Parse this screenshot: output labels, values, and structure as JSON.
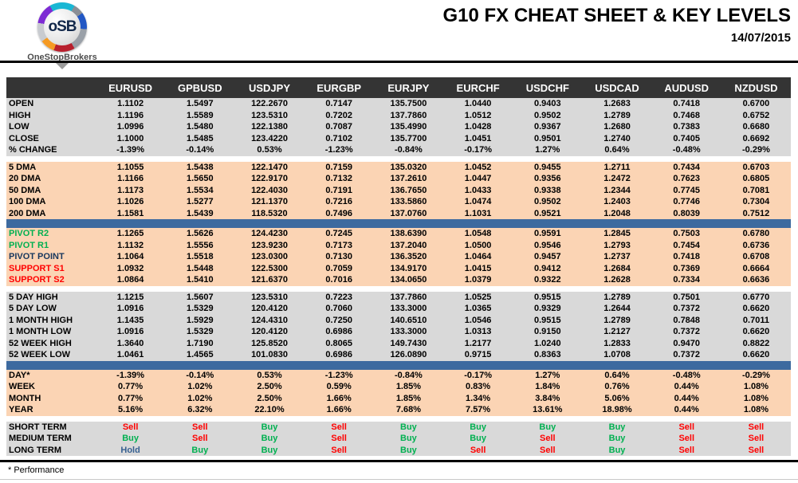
{
  "header": {
    "logo_text": "oSB",
    "logo_subtext": "OneStopBrokers",
    "title": "G10 FX CHEAT SHEET & KEY LEVELS",
    "date": "14/07/2015"
  },
  "colors": {
    "header_bg": "#343434",
    "section_gray": "#D9D9D9",
    "section_peach": "#FBD4B4",
    "divider_blue": "#3D6A9F",
    "buy_green": "#00B050",
    "sell_red": "#FF0000",
    "hold_blue": "#376091",
    "pivot_navy": "#17375D"
  },
  "table": {
    "columns": [
      "EURUSD",
      "GPBUSD",
      "USDJPY",
      "EURGBP",
      "EURJPY",
      "EURCHF",
      "USDCHF",
      "USDCAD",
      "AUDUSD",
      "NZDUSD"
    ],
    "sections": [
      {
        "id": "ohlc",
        "bg": "gray",
        "divider_after": "gap",
        "rows": [
          {
            "label": "OPEN",
            "values": [
              "1.1102",
              "1.5497",
              "122.2670",
              "0.7147",
              "135.7500",
              "1.0440",
              "0.9403",
              "1.2683",
              "0.7418",
              "0.6700"
            ]
          },
          {
            "label": "HIGH",
            "values": [
              "1.1196",
              "1.5589",
              "123.5310",
              "0.7202",
              "137.7860",
              "1.0512",
              "0.9502",
              "1.2789",
              "0.7468",
              "0.6752"
            ]
          },
          {
            "label": "LOW",
            "values": [
              "1.0996",
              "1.5480",
              "122.1380",
              "0.7087",
              "135.4990",
              "1.0428",
              "0.9367",
              "1.2680",
              "0.7383",
              "0.6680"
            ]
          },
          {
            "label": "CLOSE",
            "values": [
              "1.1000",
              "1.5485",
              "123.4220",
              "0.7102",
              "135.7700",
              "1.0451",
              "0.9501",
              "1.2740",
              "0.7405",
              "0.6692"
            ]
          },
          {
            "label": "% CHANGE",
            "values": [
              "-1.39%",
              "-0.14%",
              "0.53%",
              "-1.23%",
              "-0.84%",
              "-0.17%",
              "1.27%",
              "0.64%",
              "-0.48%",
              "-0.29%"
            ]
          }
        ]
      },
      {
        "id": "dma",
        "bg": "peach",
        "divider_after": "blue",
        "rows": [
          {
            "label": "5 DMA",
            "values": [
              "1.1055",
              "1.5438",
              "122.1470",
              "0.7159",
              "135.0320",
              "1.0452",
              "0.9455",
              "1.2711",
              "0.7434",
              "0.6703"
            ]
          },
          {
            "label": "20 DMA",
            "values": [
              "1.1166",
              "1.5650",
              "122.9170",
              "0.7132",
              "137.2610",
              "1.0447",
              "0.9356",
              "1.2472",
              "0.7623",
              "0.6805"
            ]
          },
          {
            "label": "50 DMA",
            "values": [
              "1.1173",
              "1.5534",
              "122.4030",
              "0.7191",
              "136.7650",
              "1.0433",
              "0.9338",
              "1.2344",
              "0.7745",
              "0.7081"
            ]
          },
          {
            "label": "100 DMA",
            "values": [
              "1.1026",
              "1.5277",
              "121.1370",
              "0.7216",
              "133.5860",
              "1.0474",
              "0.9502",
              "1.2403",
              "0.7746",
              "0.7304"
            ]
          },
          {
            "label": "200 DMA",
            "values": [
              "1.1581",
              "1.5439",
              "118.5320",
              "0.7496",
              "137.0760",
              "1.1031",
              "0.9521",
              "1.2048",
              "0.8039",
              "0.7512"
            ]
          }
        ]
      },
      {
        "id": "pivots",
        "bg": "peach",
        "divider_after": "gap",
        "rows": [
          {
            "label": "PIVOT R2",
            "label_color": "green",
            "values": [
              "1.1265",
              "1.5626",
              "124.4230",
              "0.7245",
              "138.6390",
              "1.0548",
              "0.9591",
              "1.2845",
              "0.7503",
              "0.6780"
            ]
          },
          {
            "label": "PIVOT R1",
            "label_color": "green",
            "values": [
              "1.1132",
              "1.5556",
              "123.9230",
              "0.7173",
              "137.2040",
              "1.0500",
              "0.9546",
              "1.2793",
              "0.7454",
              "0.6736"
            ]
          },
          {
            "label": "PIVOT POINT",
            "label_color": "navy",
            "values": [
              "1.1064",
              "1.5518",
              "123.0300",
              "0.7130",
              "136.3520",
              "1.0464",
              "0.9457",
              "1.2737",
              "0.7418",
              "0.6708"
            ]
          },
          {
            "label": "SUPPORT S1",
            "label_color": "red",
            "values": [
              "1.0932",
              "1.5448",
              "122.5300",
              "0.7059",
              "134.9170",
              "1.0415",
              "0.9412",
              "1.2684",
              "0.7369",
              "0.6664"
            ]
          },
          {
            "label": "SUPPORT S2",
            "label_color": "red",
            "values": [
              "1.0864",
              "1.5410",
              "121.6370",
              "0.7016",
              "134.0650",
              "1.0379",
              "0.9322",
              "1.2628",
              "0.7334",
              "0.6636"
            ]
          }
        ]
      },
      {
        "id": "ranges",
        "bg": "gray",
        "divider_after": "blue",
        "rows": [
          {
            "label": "5 DAY HIGH",
            "values": [
              "1.1215",
              "1.5607",
              "123.5310",
              "0.7223",
              "137.7860",
              "1.0525",
              "0.9515",
              "1.2789",
              "0.7501",
              "0.6770"
            ]
          },
          {
            "label": "5 DAY LOW",
            "values": [
              "1.0916",
              "1.5329",
              "120.4120",
              "0.7060",
              "133.3000",
              "1.0365",
              "0.9329",
              "1.2644",
              "0.7372",
              "0.6620"
            ]
          },
          {
            "label": "1 MONTH HIGH",
            "values": [
              "1.1435",
              "1.5929",
              "124.4310",
              "0.7250",
              "140.6510",
              "1.0546",
              "0.9515",
              "1.2789",
              "0.7848",
              "0.7011"
            ]
          },
          {
            "label": "1 MONTH LOW",
            "values": [
              "1.0916",
              "1.5329",
              "120.4120",
              "0.6986",
              "133.3000",
              "1.0313",
              "0.9150",
              "1.2127",
              "0.7372",
              "0.6620"
            ]
          },
          {
            "label": "52 WEEK HIGH",
            "values": [
              "1.3640",
              "1.7190",
              "125.8520",
              "0.8065",
              "149.7430",
              "1.2177",
              "1.0240",
              "1.2833",
              "0.9470",
              "0.8822"
            ]
          },
          {
            "label": "52 WEEK LOW",
            "values": [
              "1.0461",
              "1.4565",
              "101.0830",
              "0.6986",
              "126.0890",
              "0.9715",
              "0.8363",
              "1.0708",
              "0.7372",
              "0.6620"
            ]
          }
        ]
      },
      {
        "id": "performance",
        "bg": "peach",
        "divider_after": "gap",
        "rows": [
          {
            "label": "DAY*",
            "values": [
              "-1.39%",
              "-0.14%",
              "0.53%",
              "-1.23%",
              "-0.84%",
              "-0.17%",
              "1.27%",
              "0.64%",
              "-0.48%",
              "-0.29%"
            ]
          },
          {
            "label": "WEEK",
            "values": [
              "0.77%",
              "1.02%",
              "2.50%",
              "0.59%",
              "1.85%",
              "0.83%",
              "1.84%",
              "0.76%",
              "0.44%",
              "1.08%"
            ]
          },
          {
            "label": "MONTH",
            "values": [
              "0.77%",
              "1.02%",
              "2.50%",
              "1.66%",
              "1.85%",
              "1.34%",
              "3.84%",
              "5.06%",
              "0.44%",
              "1.08%"
            ]
          },
          {
            "label": "YEAR",
            "values": [
              "5.16%",
              "6.32%",
              "22.10%",
              "1.66%",
              "7.68%",
              "7.57%",
              "13.61%",
              "18.98%",
              "0.44%",
              "1.08%"
            ]
          }
        ]
      },
      {
        "id": "signals",
        "bg": "gray",
        "divider_after": "none",
        "rows": [
          {
            "label": "SHORT TERM",
            "values": [
              "Sell",
              "Sell",
              "Buy",
              "Sell",
              "Buy",
              "Buy",
              "Buy",
              "Buy",
              "Sell",
              "Sell"
            ]
          },
          {
            "label": "MEDIUM TERM",
            "values": [
              "Buy",
              "Sell",
              "Buy",
              "Sell",
              "Buy",
              "Buy",
              "Sell",
              "Buy",
              "Sell",
              "Sell"
            ]
          },
          {
            "label": "LONG TERM",
            "values": [
              "Hold",
              "Buy",
              "Buy",
              "Sell",
              "Buy",
              "Sell",
              "Sell",
              "Buy",
              "Sell",
              "Sell"
            ]
          }
        ]
      }
    ]
  },
  "footnote": "* Performance"
}
